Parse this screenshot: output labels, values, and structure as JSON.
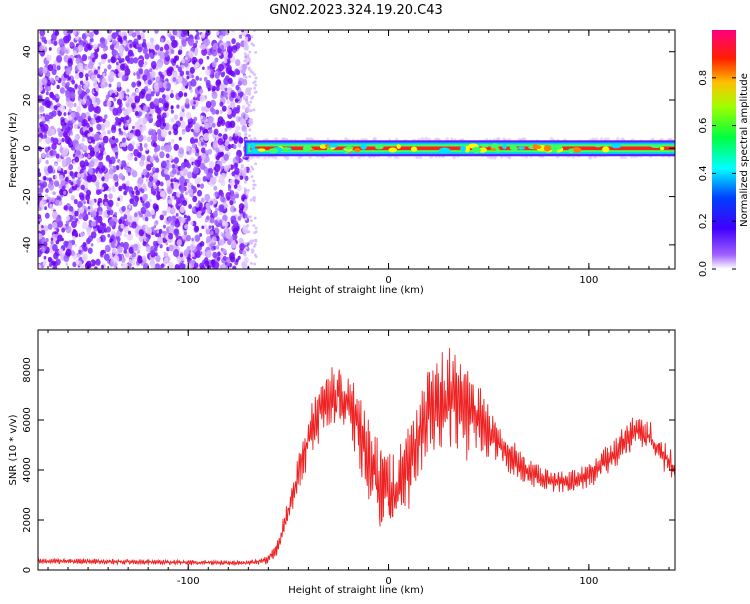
{
  "figure": {
    "title": "GN02.2023.324.19.20.C43"
  },
  "chart_data": [
    {
      "type": "heatmap",
      "xlabel": "Height of straight line (km)",
      "ylabel": "Frequency (Hz)",
      "xlim": [
        -175,
        143
      ],
      "ylim": [
        -50,
        49
      ],
      "xticks": [
        -100,
        0,
        100
      ],
      "yticks": [
        -40,
        -20,
        0,
        20,
        40
      ],
      "colorbar": {
        "label": "Normalized spectral amplitude",
        "range": [
          0,
          1
        ],
        "ticks": [
          "0.0",
          "0.2",
          "0.4",
          "0.6",
          "0.8"
        ],
        "colors": [
          "#ffffff",
          "#6a00ff",
          "#0000ff",
          "#00ffff",
          "#00ff00",
          "#ffff00",
          "#ff0000",
          "#ff0080"
        ]
      },
      "noise_region_x": [
        -175,
        -70
      ],
      "signal_band": {
        "x_start": -72,
        "x_end": 143,
        "frequency": 0,
        "half_width": 1.5
      },
      "grid": false
    },
    {
      "type": "line",
      "xlabel": "Height of straight line (km)",
      "ylabel": "SNR (10 * v/v)",
      "xlim": [
        -175,
        143
      ],
      "ylim": [
        0,
        9600
      ],
      "xticks": [
        -100,
        0,
        100
      ],
      "yticks": [
        0,
        2000,
        4000,
        6000,
        8000
      ],
      "color": "#ee2222",
      "grid": false,
      "envelope": {
        "x": [
          -175,
          -150,
          -100,
          -70,
          -60,
          -55,
          -50,
          -45,
          -40,
          -35,
          -30,
          -25,
          -20,
          -15,
          -10,
          -5,
          0,
          5,
          10,
          15,
          20,
          25,
          30,
          35,
          40,
          45,
          50,
          55,
          60,
          65,
          70,
          75,
          80,
          85,
          90,
          95,
          100,
          105,
          110,
          115,
          120,
          125,
          130,
          135,
          140,
          143
        ],
        "mid": [
          350,
          350,
          300,
          280,
          400,
          1000,
          2300,
          3900,
          5200,
          6200,
          6900,
          7000,
          6500,
          5700,
          4400,
          3300,
          3000,
          3300,
          4200,
          5300,
          6200,
          6600,
          6800,
          6700,
          6400,
          6000,
          5600,
          5000,
          4600,
          4200,
          3900,
          3700,
          3600,
          3500,
          3500,
          3600,
          3800,
          4100,
          4500,
          4900,
          5300,
          5600,
          5300,
          4800,
          4300,
          4000
        ],
        "amp": [
          120,
          120,
          110,
          100,
          200,
          350,
          600,
          900,
          1100,
          1300,
          1400,
          1400,
          1500,
          1700,
          1900,
          2000,
          1900,
          1800,
          1900,
          2100,
          2300,
          2400,
          2500,
          2400,
          2100,
          1700,
          1300,
          1000,
          800,
          700,
          600,
          500,
          500,
          500,
          500,
          500,
          550,
          600,
          650,
          700,
          750,
          800,
          750,
          700,
          700,
          600
        ]
      }
    }
  ]
}
